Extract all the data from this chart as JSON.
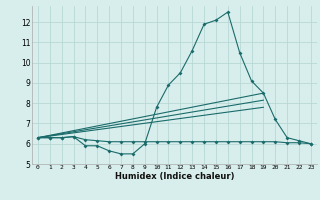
{
  "bg_color": "#d8eeec",
  "grid_color": "#b8d8d5",
  "line_color": "#1a6b6b",
  "xlabel": "Humidex (Indice chaleur)",
  "xlim": [
    -0.5,
    23.5
  ],
  "ylim": [
    5,
    12.8
  ],
  "yticks": [
    5,
    6,
    7,
    8,
    9,
    10,
    11,
    12
  ],
  "xticks": [
    0,
    1,
    2,
    3,
    4,
    5,
    6,
    7,
    8,
    9,
    10,
    11,
    12,
    13,
    14,
    15,
    16,
    17,
    18,
    19,
    20,
    21,
    22,
    23
  ],
  "series1_x": [
    0,
    1,
    2,
    3,
    4,
    5,
    6,
    7,
    8,
    9,
    10,
    11,
    12,
    13,
    14,
    15,
    16,
    17,
    18,
    19,
    20,
    21,
    22,
    23
  ],
  "series1_y": [
    6.3,
    6.3,
    6.3,
    6.35,
    5.9,
    5.9,
    5.65,
    5.5,
    5.5,
    6.0,
    7.8,
    8.9,
    9.5,
    10.6,
    11.9,
    12.1,
    12.5,
    10.5,
    9.1,
    8.5,
    7.2,
    6.3,
    6.15,
    6.0
  ],
  "series2_x": [
    0,
    19
  ],
  "series2_y": [
    6.3,
    8.5
  ],
  "series3_x": [
    0,
    19
  ],
  "series3_y": [
    6.3,
    7.8
  ],
  "series4_x": [
    0,
    19
  ],
  "series4_y": [
    6.3,
    8.15
  ],
  "series5_x": [
    0,
    1,
    2,
    3,
    4,
    5,
    6,
    7,
    8,
    9,
    10,
    11,
    12,
    13,
    14,
    15,
    16,
    17,
    18,
    19,
    20,
    21,
    22,
    23
  ],
  "series5_y": [
    6.3,
    6.3,
    6.3,
    6.35,
    6.2,
    6.15,
    6.1,
    6.1,
    6.1,
    6.1,
    6.1,
    6.1,
    6.1,
    6.1,
    6.1,
    6.1,
    6.1,
    6.1,
    6.1,
    6.1,
    6.1,
    6.05,
    6.05,
    6.0
  ]
}
